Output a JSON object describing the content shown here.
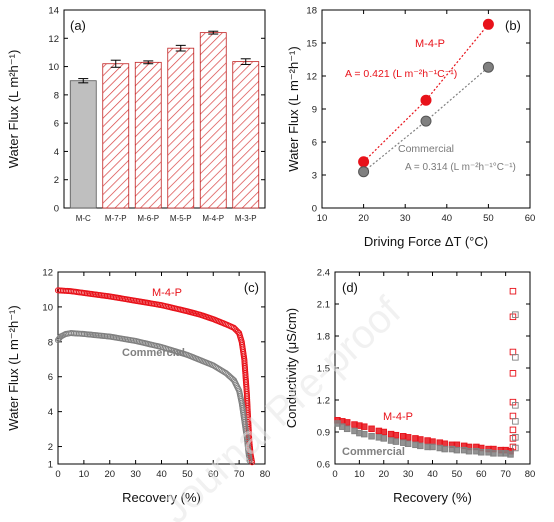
{
  "watermark": "Journal Pre-proof",
  "chart_data": [
    {
      "panel": "(a)",
      "type": "bar",
      "ylabel": "Water Flux  (L m²h⁻¹)",
      "ylim": [
        0,
        14
      ],
      "yticks": [
        0,
        2,
        4,
        6,
        8,
        10,
        12,
        14
      ],
      "categories": [
        "M-C",
        "M-7-P",
        "M-6-P",
        "M-5-P",
        "M-4-P",
        "M-3-P"
      ],
      "values": [
        9.0,
        10.2,
        10.3,
        11.3,
        12.4,
        10.35
      ],
      "errors": [
        0.15,
        0.25,
        0.1,
        0.2,
        0.1,
        0.2
      ],
      "colors": [
        "#bfbfbf",
        "hatch",
        "hatch",
        "hatch",
        "hatch",
        "hatch"
      ],
      "grid": false
    },
    {
      "panel": "(b)",
      "type": "scatter",
      "xlabel": "Driving Force ΔT  (°C)",
      "ylabel": "Water Flux  (L m⁻²h⁻¹)",
      "xlim": [
        10,
        60
      ],
      "ylim": [
        0,
        18
      ],
      "xticks": [
        10,
        20,
        30,
        40,
        50,
        60
      ],
      "yticks": [
        0,
        3,
        6,
        9,
        12,
        15,
        18
      ],
      "series": [
        {
          "name": "M-4-P",
          "color": "#e8121a",
          "x": [
            20,
            35,
            50
          ],
          "y": [
            4.2,
            9.8,
            16.7
          ],
          "errors": [
            0.25,
            0.4,
            0.2
          ],
          "annotation": "A = 0.421 (L m⁻²h⁻¹C⁻¹)"
        },
        {
          "name": "Commercial",
          "color": "#808080",
          "x": [
            20,
            35,
            50
          ],
          "y": [
            3.3,
            7.9,
            12.8
          ],
          "errors": [
            0.2,
            0.2,
            0.35
          ],
          "annotation": "A = 0.314 (L m⁻²h⁻¹°C⁻¹)"
        }
      ],
      "grid": false
    },
    {
      "panel": "(c)",
      "type": "scatter",
      "xlabel": "Recovery  (%)",
      "ylabel": "Water Flux  (L m⁻²h⁻¹)",
      "xlim": [
        0,
        80
      ],
      "ylim": [
        1,
        12
      ],
      "xticks": [
        0,
        10,
        20,
        30,
        40,
        50,
        60,
        70,
        80
      ],
      "yticks": [
        1,
        2,
        4,
        6,
        8,
        10,
        12
      ],
      "series": [
        {
          "name": "M-4-P",
          "color": "#e8121a",
          "x": [
            0,
            5,
            10,
            20,
            30,
            40,
            50,
            55,
            60,
            65,
            68,
            70,
            71,
            72,
            73,
            73.5,
            74,
            74.5,
            75
          ],
          "y": [
            10.95,
            10.9,
            10.8,
            10.6,
            10.35,
            10.1,
            9.75,
            9.55,
            9.3,
            9.0,
            8.8,
            8.5,
            8.0,
            7.0,
            5.0,
            3.5,
            2.2,
            1.5,
            1.1
          ]
        },
        {
          "name": "Commercial",
          "color": "#808080",
          "x": [
            0,
            1,
            3,
            5,
            10,
            20,
            30,
            40,
            50,
            55,
            60,
            65,
            68,
            70,
            71,
            72,
            73,
            73.5,
            74
          ],
          "y": [
            8.1,
            8.3,
            8.45,
            8.5,
            8.45,
            8.3,
            8.05,
            7.7,
            7.25,
            6.95,
            6.65,
            6.2,
            5.8,
            5.2,
            4.5,
            3.5,
            2.5,
            1.8,
            1.2
          ]
        }
      ],
      "grid": false
    },
    {
      "panel": "(d)",
      "type": "scatter",
      "xlabel": "Recovery  (%)",
      "ylabel": "Conductivity  (μS/cm)",
      "xlim": [
        0,
        80
      ],
      "ylim": [
        0.6,
        2.4
      ],
      "xticks": [
        0,
        10,
        20,
        30,
        40,
        50,
        60,
        70,
        80
      ],
      "yticks": [
        0.6,
        0.9,
        1.2,
        1.5,
        1.8,
        2.1,
        2.4
      ],
      "series": [
        {
          "name": "M-4-P",
          "color": "#e8121a",
          "x": [
            1,
            3,
            5,
            8,
            10,
            12,
            15,
            18,
            20,
            23,
            25,
            28,
            30,
            33,
            35,
            38,
            40,
            43,
            45,
            48,
            50,
            53,
            55,
            58,
            60,
            63,
            65,
            68,
            70,
            72,
            73,
            73,
            73,
            73,
            73,
            73,
            73,
            73,
            73
          ],
          "y": [
            1.01,
            1.0,
            0.99,
            0.97,
            0.96,
            0.95,
            0.93,
            0.91,
            0.9,
            0.88,
            0.87,
            0.86,
            0.85,
            0.84,
            0.83,
            0.82,
            0.81,
            0.8,
            0.79,
            0.78,
            0.78,
            0.77,
            0.76,
            0.76,
            0.75,
            0.74,
            0.74,
            0.73,
            0.73,
            0.72,
            0.76,
            0.84,
            0.92,
            1.05,
            1.18,
            1.45,
            1.65,
            1.98,
            2.22
          ]
        },
        {
          "name": "Commercial",
          "color": "#808080",
          "x": [
            1,
            3,
            5,
            8,
            10,
            12,
            15,
            18,
            20,
            23,
            25,
            28,
            30,
            33,
            35,
            38,
            40,
            43,
            45,
            48,
            50,
            53,
            55,
            58,
            60,
            63,
            65,
            68,
            70,
            72,
            74,
            74,
            74,
            74,
            74,
            74
          ],
          "y": [
            0.98,
            0.95,
            0.93,
            0.91,
            0.89,
            0.88,
            0.86,
            0.85,
            0.84,
            0.82,
            0.81,
            0.8,
            0.79,
            0.78,
            0.77,
            0.76,
            0.76,
            0.75,
            0.74,
            0.74,
            0.73,
            0.73,
            0.72,
            0.72,
            0.71,
            0.71,
            0.7,
            0.7,
            0.7,
            0.69,
            0.75,
            0.85,
            1.0,
            1.15,
            1.6,
            2.0
          ]
        }
      ],
      "grid": false
    }
  ]
}
